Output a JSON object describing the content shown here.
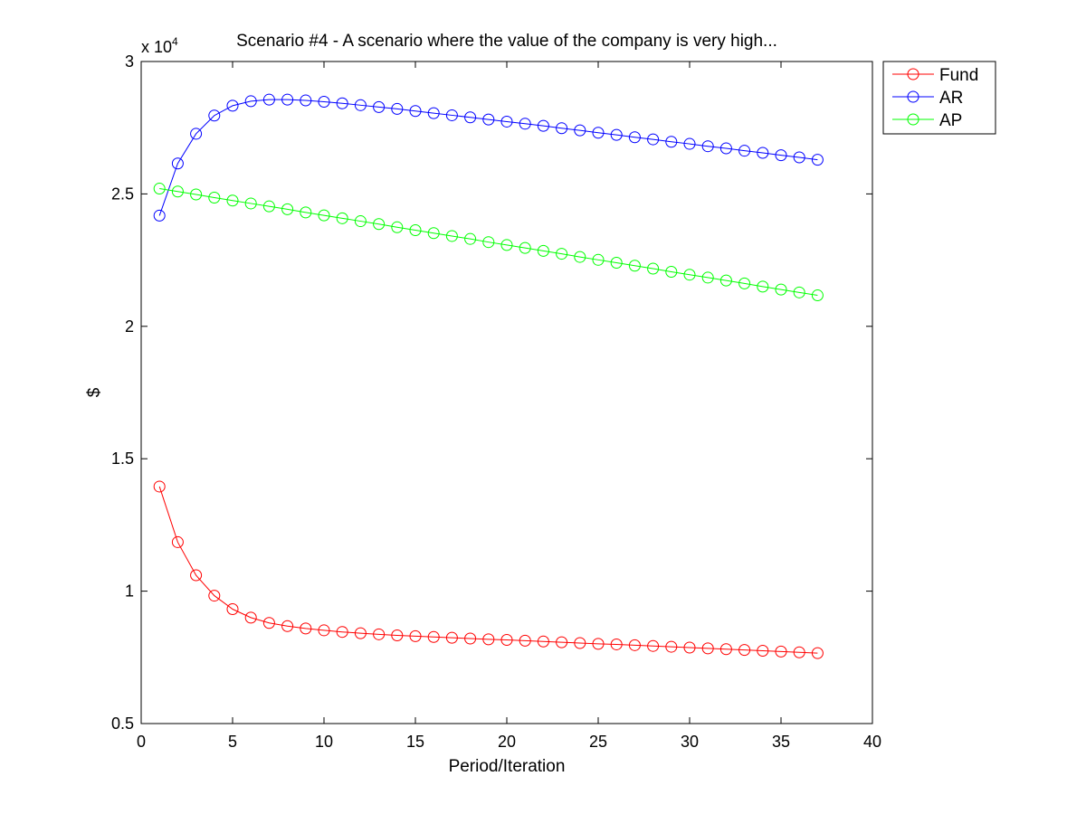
{
  "chart_data": {
    "type": "line",
    "title": "Scenario #4 - A scenario where the value of the company is very high...",
    "xlabel": "Period/Iteration",
    "ylabel": "$",
    "y_exponent_label": {
      "prefix": "x 10",
      "power": "4"
    },
    "xlim": [
      0,
      40
    ],
    "ylim": [
      5000,
      30000
    ],
    "x_ticks": [
      0,
      5,
      10,
      15,
      20,
      25,
      30,
      35,
      40
    ],
    "x_tick_labels": [
      "0",
      "5",
      "10",
      "15",
      "20",
      "25",
      "30",
      "35",
      "40"
    ],
    "y_ticks": [
      5000,
      10000,
      15000,
      20000,
      25000,
      30000
    ],
    "y_tick_labels": [
      "0.5",
      "1",
      "1.5",
      "2",
      "2.5",
      "3"
    ],
    "grid": false,
    "legend_position": "outside-top-right",
    "marker": "circle",
    "x": [
      1,
      2,
      3,
      4,
      5,
      6,
      7,
      8,
      9,
      10,
      11,
      12,
      13,
      14,
      15,
      16,
      17,
      18,
      19,
      20,
      21,
      22,
      23,
      24,
      25,
      26,
      27,
      28,
      29,
      30,
      31,
      32,
      33,
      34,
      35,
      36,
      37
    ],
    "series": [
      {
        "name": "Fund",
        "color": "#ff0000",
        "values": [
          13950,
          11850,
          10600,
          9830,
          9320,
          9000,
          8800,
          8680,
          8590,
          8520,
          8460,
          8410,
          8370,
          8330,
          8300,
          8270,
          8240,
          8210,
          8180,
          8160,
          8130,
          8100,
          8070,
          8040,
          8010,
          7990,
          7960,
          7930,
          7900,
          7870,
          7840,
          7810,
          7780,
          7750,
          7720,
          7690,
          7660
        ]
      },
      {
        "name": "AR",
        "color": "#0000ff",
        "values": [
          24180,
          26150,
          27270,
          27960,
          28330,
          28500,
          28560,
          28560,
          28530,
          28480,
          28420,
          28350,
          28280,
          28210,
          28130,
          28050,
          27970,
          27890,
          27810,
          27730,
          27650,
          27570,
          27480,
          27400,
          27310,
          27230,
          27140,
          27060,
          26970,
          26890,
          26800,
          26720,
          26630,
          26550,
          26460,
          26380,
          26290
        ]
      },
      {
        "name": "AP",
        "color": "#00ff00",
        "values": [
          25200,
          25090,
          24980,
          24860,
          24750,
          24640,
          24530,
          24420,
          24300,
          24190,
          24080,
          23970,
          23860,
          23740,
          23630,
          23520,
          23410,
          23300,
          23180,
          23070,
          22960,
          22850,
          22740,
          22620,
          22510,
          22400,
          22290,
          22180,
          22060,
          21950,
          21840,
          21730,
          21620,
          21500,
          21390,
          21280,
          21170
        ]
      }
    ]
  }
}
